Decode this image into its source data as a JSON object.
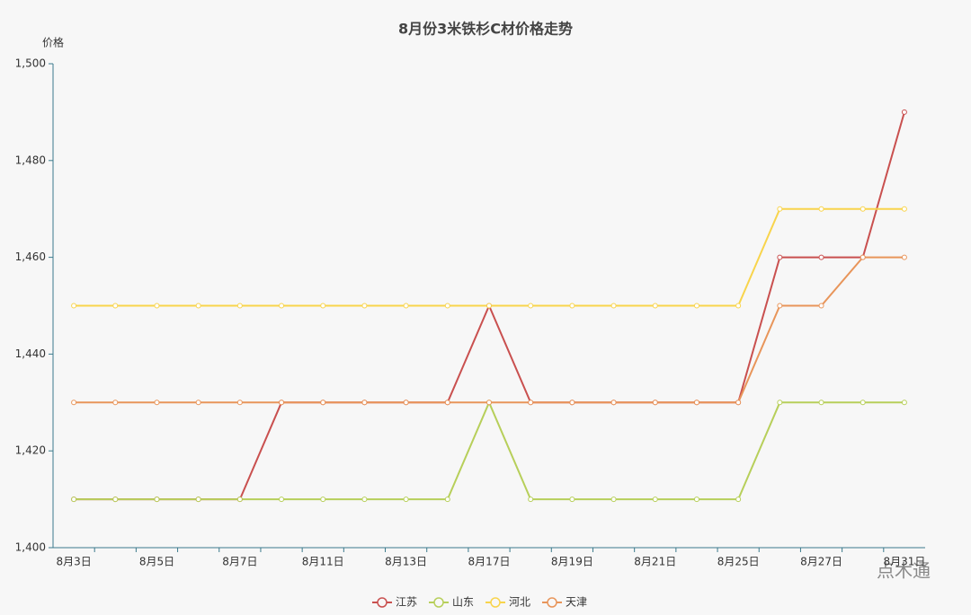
{
  "chart_data": {
    "type": "line",
    "title": "8月份3米铁杉C材价格走势",
    "y_label": "价格",
    "categories": [
      "8月3日",
      null,
      "8月5日",
      null,
      "8月7日",
      null,
      "8月11日",
      null,
      "8月13日",
      null,
      "8月17日",
      null,
      "8月19日",
      null,
      "8月21日",
      null,
      "8月25日",
      null,
      "8月27日",
      null,
      "8月31日"
    ],
    "series": [
      {
        "name": "江苏",
        "color": "#c9504f",
        "values": [
          1410,
          1410,
          1410,
          1410,
          1410,
          1430,
          1430,
          1430,
          1430,
          1430,
          1450,
          1430,
          1430,
          1430,
          1430,
          1430,
          1430,
          1460,
          1460,
          1460,
          1490
        ]
      },
      {
        "name": "山东",
        "color": "#b7cf5a",
        "values": [
          1410,
          1410,
          1410,
          1410,
          1410,
          1410,
          1410,
          1410,
          1410,
          1410,
          1430,
          1410,
          1410,
          1410,
          1410,
          1410,
          1410,
          1430,
          1430,
          1430,
          1430
        ]
      },
      {
        "name": "河北",
        "color": "#f8d44c",
        "values": [
          1450,
          1450,
          1450,
          1450,
          1450,
          1450,
          1450,
          1450,
          1450,
          1450,
          1450,
          1450,
          1450,
          1450,
          1450,
          1450,
          1450,
          1470,
          1470,
          1470,
          1470
        ]
      },
      {
        "name": "天津",
        "color": "#e8955a",
        "values": [
          1430,
          1430,
          1430,
          1430,
          1430,
          1430,
          1430,
          1430,
          1430,
          1430,
          1430,
          1430,
          1430,
          1430,
          1430,
          1430,
          1430,
          1450,
          1450,
          1460,
          1460
        ]
      }
    ],
    "ylim": [
      1400,
      1500
    ],
    "yticks": [
      {
        "value": 1400,
        "label": "1,400"
      },
      {
        "value": 1420,
        "label": "1,420"
      },
      {
        "value": 1440,
        "label": "1,440"
      },
      {
        "value": 1460,
        "label": "1,460"
      },
      {
        "value": 1480,
        "label": "1,480"
      },
      {
        "value": 1500,
        "label": "1,500"
      }
    ],
    "grid": false,
    "legend": "bottom",
    "watermark": "点木通"
  }
}
